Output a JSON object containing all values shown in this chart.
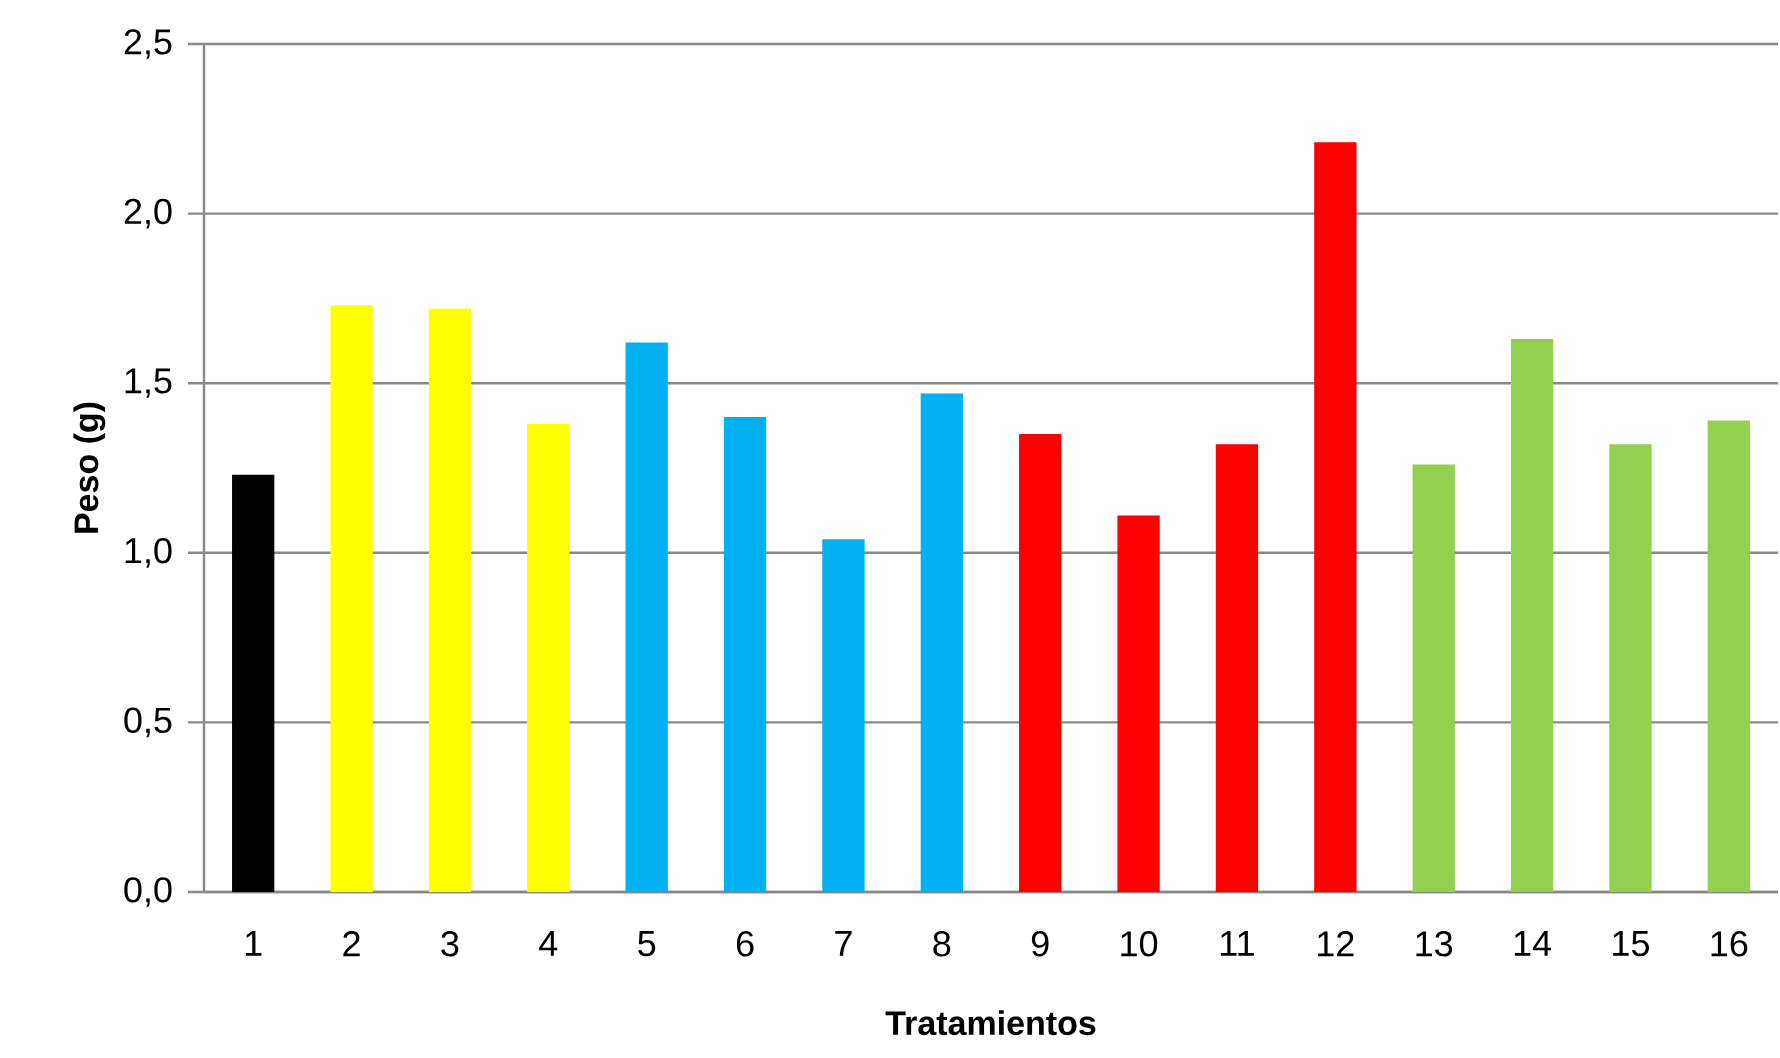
{
  "chart_data": {
    "type": "bar",
    "xlabel": "Tratamientos",
    "ylabel": "Peso (g)",
    "categories": [
      "1",
      "2",
      "3",
      "4",
      "5",
      "6",
      "7",
      "8",
      "9",
      "10",
      "11",
      "12",
      "13",
      "14",
      "15",
      "16"
    ],
    "values": [
      1.23,
      1.73,
      1.72,
      1.38,
      1.62,
      1.4,
      1.04,
      1.47,
      1.35,
      1.11,
      1.32,
      2.21,
      1.26,
      1.63,
      1.32,
      1.39
    ],
    "colors": [
      "#000000",
      "#ffff00",
      "#ffff00",
      "#ffff00",
      "#00b0f0",
      "#00b0f0",
      "#00b0f0",
      "#00b0f0",
      "#ff0000",
      "#ff0000",
      "#ff0000",
      "#ff0000",
      "#92d050",
      "#92d050",
      "#92d050",
      "#92d050"
    ],
    "ylim": [
      0,
      2.5
    ],
    "yticks": [
      {
        "value": 0,
        "label": "0,0"
      },
      {
        "value": 0.5,
        "label": "0,5"
      },
      {
        "value": 1,
        "label": "1,0"
      },
      {
        "value": 1.5,
        "label": "1,5"
      },
      {
        "value": 2,
        "label": "2,0"
      },
      {
        "value": 2.5,
        "label": "2,5"
      }
    ],
    "grid": "y"
  }
}
